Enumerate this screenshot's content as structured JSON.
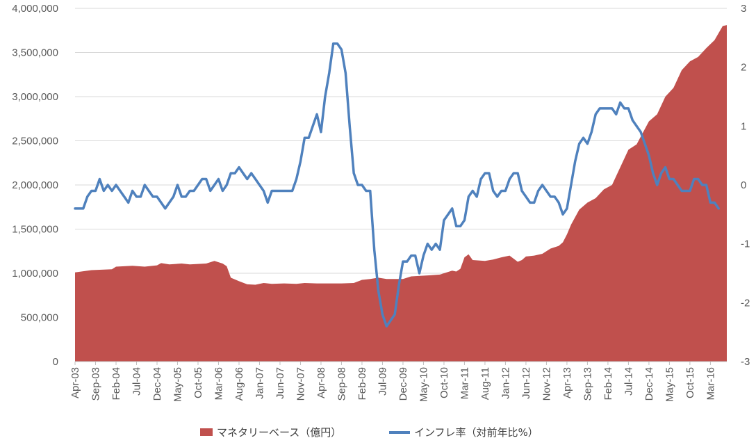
{
  "chart_data": {
    "type": "area+line",
    "title": "",
    "xlabel": "",
    "ylabel_left": "",
    "ylabel_right": "",
    "x_tick_labels": [
      "Apr-03",
      "Sep-03",
      "Feb-04",
      "Jul-04",
      "Dec-04",
      "May-05",
      "Oct-05",
      "Mar-06",
      "Aug-06",
      "Jan-07",
      "Jun-07",
      "Nov-07",
      "Apr-08",
      "Sep-08",
      "Feb-09",
      "Jul-09",
      "Dec-09",
      "May-10",
      "Oct-10",
      "Mar-11",
      "Aug-11",
      "Jan-12",
      "Jun-12",
      "Nov-12",
      "Apr-13",
      "Sep-13",
      "Feb-14",
      "Jul-14",
      "Dec-14",
      "May-15",
      "Oct-15",
      "Mar-16"
    ],
    "x_start": "2003-04",
    "x_end": "2016-07",
    "y_left": {
      "min": 0,
      "max": 4000000,
      "step": 500000,
      "tick_labels": [
        "0",
        "500,000",
        "1,000,000",
        "1,500,000",
        "2,000,000",
        "2,500,000",
        "3,000,000",
        "3,500,000",
        "4,000,000"
      ]
    },
    "y_right": {
      "min": -3,
      "max": 3,
      "step": 1,
      "tick_labels": [
        "-3",
        "-2",
        "-1",
        "0",
        "1",
        "2",
        "3"
      ]
    },
    "gridlines": "horizontal",
    "legend_position": "bottom",
    "series": [
      {
        "name": "マネタリーベース（億円）",
        "type": "area",
        "axis": "left",
        "color": "#c0504d",
        "points": [
          [
            "2003-04",
            1010000
          ],
          [
            "2003-08",
            1035000
          ],
          [
            "2004-01",
            1045000
          ],
          [
            "2004-02",
            1075000
          ],
          [
            "2004-06",
            1085000
          ],
          [
            "2004-09",
            1075000
          ],
          [
            "2004-12",
            1090000
          ],
          [
            "2005-01",
            1115000
          ],
          [
            "2005-03",
            1100000
          ],
          [
            "2005-06",
            1110000
          ],
          [
            "2005-08",
            1100000
          ],
          [
            "2005-10",
            1105000
          ],
          [
            "2005-12",
            1110000
          ],
          [
            "2006-02",
            1140000
          ],
          [
            "2006-04",
            1110000
          ],
          [
            "2006-05",
            1080000
          ],
          [
            "2006-06",
            950000
          ],
          [
            "2006-08",
            910000
          ],
          [
            "2006-10",
            875000
          ],
          [
            "2006-12",
            870000
          ],
          [
            "2007-02",
            890000
          ],
          [
            "2007-04",
            880000
          ],
          [
            "2007-07",
            885000
          ],
          [
            "2007-10",
            880000
          ],
          [
            "2007-12",
            890000
          ],
          [
            "2008-03",
            885000
          ],
          [
            "2008-09",
            885000
          ],
          [
            "2008-12",
            890000
          ],
          [
            "2009-02",
            925000
          ],
          [
            "2009-04",
            935000
          ],
          [
            "2009-06",
            950000
          ],
          [
            "2009-08",
            935000
          ],
          [
            "2009-12",
            935000
          ],
          [
            "2010-02",
            965000
          ],
          [
            "2010-06",
            975000
          ],
          [
            "2010-09",
            985000
          ],
          [
            "2010-12",
            1030000
          ],
          [
            "2011-01",
            1020000
          ],
          [
            "2011-02",
            1050000
          ],
          [
            "2011-03",
            1180000
          ],
          [
            "2011-04",
            1215000
          ],
          [
            "2011-05",
            1150000
          ],
          [
            "2011-08",
            1140000
          ],
          [
            "2011-10",
            1155000
          ],
          [
            "2011-12",
            1180000
          ],
          [
            "2012-02",
            1200000
          ],
          [
            "2012-04",
            1130000
          ],
          [
            "2012-05",
            1150000
          ],
          [
            "2012-06",
            1190000
          ],
          [
            "2012-08",
            1200000
          ],
          [
            "2012-10",
            1220000
          ],
          [
            "2012-12",
            1280000
          ],
          [
            "2013-02",
            1310000
          ],
          [
            "2013-03",
            1350000
          ],
          [
            "2013-04",
            1440000
          ],
          [
            "2013-05",
            1550000
          ],
          [
            "2013-07",
            1720000
          ],
          [
            "2013-09",
            1800000
          ],
          [
            "2013-11",
            1850000
          ],
          [
            "2014-01",
            1950000
          ],
          [
            "2014-03",
            2000000
          ],
          [
            "2014-05",
            2200000
          ],
          [
            "2014-07",
            2400000
          ],
          [
            "2014-09",
            2460000
          ],
          [
            "2014-12",
            2720000
          ],
          [
            "2015-02",
            2800000
          ],
          [
            "2015-04",
            3000000
          ],
          [
            "2015-06",
            3100000
          ],
          [
            "2015-08",
            3300000
          ],
          [
            "2015-10",
            3400000
          ],
          [
            "2015-12",
            3450000
          ],
          [
            "2016-02",
            3550000
          ],
          [
            "2016-04",
            3640000
          ],
          [
            "2016-06",
            3800000
          ],
          [
            "2016-07",
            3810000
          ]
        ]
      },
      {
        "name": "インフレ率（対前年比%）",
        "type": "line",
        "axis": "right",
        "color": "#4f81bd",
        "points": [
          [
            "2003-04",
            -0.4
          ],
          [
            "2003-05",
            -0.4
          ],
          [
            "2003-06",
            -0.4
          ],
          [
            "2003-07",
            -0.2
          ],
          [
            "2003-08",
            -0.1
          ],
          [
            "2003-09",
            -0.1
          ],
          [
            "2003-10",
            0.1
          ],
          [
            "2003-11",
            -0.1
          ],
          [
            "2003-12",
            0.0
          ],
          [
            "2004-01",
            -0.1
          ],
          [
            "2004-02",
            0.0
          ],
          [
            "2004-03",
            -0.1
          ],
          [
            "2004-04",
            -0.2
          ],
          [
            "2004-05",
            -0.3
          ],
          [
            "2004-06",
            -0.1
          ],
          [
            "2004-07",
            -0.2
          ],
          [
            "2004-08",
            -0.2
          ],
          [
            "2004-09",
            0.0
          ],
          [
            "2004-10",
            -0.1
          ],
          [
            "2004-11",
            -0.2
          ],
          [
            "2004-12",
            -0.2
          ],
          [
            "2005-01",
            -0.3
          ],
          [
            "2005-02",
            -0.4
          ],
          [
            "2005-03",
            -0.3
          ],
          [
            "2005-04",
            -0.2
          ],
          [
            "2005-05",
            0.0
          ],
          [
            "2005-06",
            -0.2
          ],
          [
            "2005-07",
            -0.2
          ],
          [
            "2005-08",
            -0.1
          ],
          [
            "2005-09",
            -0.1
          ],
          [
            "2005-10",
            0.0
          ],
          [
            "2005-11",
            0.1
          ],
          [
            "2005-12",
            0.1
          ],
          [
            "2006-01",
            -0.1
          ],
          [
            "2006-02",
            0.0
          ],
          [
            "2006-03",
            0.1
          ],
          [
            "2006-04",
            -0.1
          ],
          [
            "2006-05",
            0.0
          ],
          [
            "2006-06",
            0.2
          ],
          [
            "2006-07",
            0.2
          ],
          [
            "2006-08",
            0.3
          ],
          [
            "2006-09",
            0.2
          ],
          [
            "2006-10",
            0.1
          ],
          [
            "2006-11",
            0.2
          ],
          [
            "2006-12",
            0.1
          ],
          [
            "2007-01",
            0.0
          ],
          [
            "2007-02",
            -0.1
          ],
          [
            "2007-03",
            -0.3
          ],
          [
            "2007-04",
            -0.1
          ],
          [
            "2007-05",
            -0.1
          ],
          [
            "2007-06",
            -0.1
          ],
          [
            "2007-07",
            -0.1
          ],
          [
            "2007-08",
            -0.1
          ],
          [
            "2007-09",
            -0.1
          ],
          [
            "2007-10",
            0.1
          ],
          [
            "2007-11",
            0.4
          ],
          [
            "2007-12",
            0.8
          ],
          [
            "2008-01",
            0.8
          ],
          [
            "2008-02",
            1.0
          ],
          [
            "2008-03",
            1.2
          ],
          [
            "2008-04",
            0.9
          ],
          [
            "2008-05",
            1.5
          ],
          [
            "2008-06",
            1.9
          ],
          [
            "2008-07",
            2.4
          ],
          [
            "2008-08",
            2.4
          ],
          [
            "2008-09",
            2.3
          ],
          [
            "2008-10",
            1.9
          ],
          [
            "2008-11",
            1.0
          ],
          [
            "2008-12",
            0.2
          ],
          [
            "2009-01",
            0.0
          ],
          [
            "2009-02",
            0.0
          ],
          [
            "2009-03",
            -0.1
          ],
          [
            "2009-04",
            -0.1
          ],
          [
            "2009-05",
            -1.1
          ],
          [
            "2009-06",
            -1.8
          ],
          [
            "2009-07",
            -2.2
          ],
          [
            "2009-08",
            -2.4
          ],
          [
            "2009-09",
            -2.3
          ],
          [
            "2009-10",
            -2.2
          ],
          [
            "2009-11",
            -1.7
          ],
          [
            "2009-12",
            -1.3
          ],
          [
            "2010-01",
            -1.3
          ],
          [
            "2010-02",
            -1.2
          ],
          [
            "2010-03",
            -1.2
          ],
          [
            "2010-04",
            -1.5
          ],
          [
            "2010-05",
            -1.2
          ],
          [
            "2010-06",
            -1.0
          ],
          [
            "2010-07",
            -1.1
          ],
          [
            "2010-08",
            -1.0
          ],
          [
            "2010-09",
            -1.1
          ],
          [
            "2010-10",
            -0.6
          ],
          [
            "2010-11",
            -0.5
          ],
          [
            "2010-12",
            -0.4
          ],
          [
            "2011-01",
            -0.7
          ],
          [
            "2011-02",
            -0.7
          ],
          [
            "2011-03",
            -0.6
          ],
          [
            "2011-04",
            -0.2
          ],
          [
            "2011-05",
            -0.1
          ],
          [
            "2011-06",
            -0.2
          ],
          [
            "2011-07",
            0.1
          ],
          [
            "2011-08",
            0.2
          ],
          [
            "2011-09",
            0.2
          ],
          [
            "2011-10",
            -0.1
          ],
          [
            "2011-11",
            -0.2
          ],
          [
            "2011-12",
            -0.1
          ],
          [
            "2012-01",
            -0.1
          ],
          [
            "2012-02",
            0.1
          ],
          [
            "2012-03",
            0.2
          ],
          [
            "2012-04",
            0.2
          ],
          [
            "2012-05",
            -0.1
          ],
          [
            "2012-06",
            -0.2
          ],
          [
            "2012-07",
            -0.3
          ],
          [
            "2012-08",
            -0.3
          ],
          [
            "2012-09",
            -0.1
          ],
          [
            "2012-10",
            0.0
          ],
          [
            "2012-11",
            -0.1
          ],
          [
            "2012-12",
            -0.2
          ],
          [
            "2013-01",
            -0.2
          ],
          [
            "2013-02",
            -0.3
          ],
          [
            "2013-03",
            -0.5
          ],
          [
            "2013-04",
            -0.4
          ],
          [
            "2013-05",
            0.0
          ],
          [
            "2013-06",
            0.4
          ],
          [
            "2013-07",
            0.7
          ],
          [
            "2013-08",
            0.8
          ],
          [
            "2013-09",
            0.7
          ],
          [
            "2013-10",
            0.9
          ],
          [
            "2013-11",
            1.2
          ],
          [
            "2013-12",
            1.3
          ],
          [
            "2014-01",
            1.3
          ],
          [
            "2014-02",
            1.3
          ],
          [
            "2014-03",
            1.3
          ],
          [
            "2014-04",
            1.2
          ],
          [
            "2014-05",
            1.4
          ],
          [
            "2014-06",
            1.3
          ],
          [
            "2014-07",
            1.3
          ],
          [
            "2014-08",
            1.1
          ],
          [
            "2014-09",
            1.0
          ],
          [
            "2014-10",
            0.9
          ],
          [
            "2014-11",
            0.7
          ],
          [
            "2014-12",
            0.5
          ],
          [
            "2015-01",
            0.2
          ],
          [
            "2015-02",
            0.0
          ],
          [
            "2015-03",
            0.2
          ],
          [
            "2015-04",
            0.3
          ],
          [
            "2015-05",
            0.1
          ],
          [
            "2015-06",
            0.1
          ],
          [
            "2015-07",
            0.0
          ],
          [
            "2015-08",
            -0.1
          ],
          [
            "2015-09",
            -0.1
          ],
          [
            "2015-10",
            -0.1
          ],
          [
            "2015-11",
            0.1
          ],
          [
            "2015-12",
            0.1
          ],
          [
            "2016-01",
            0.0
          ],
          [
            "2016-02",
            0.0
          ],
          [
            "2016-03",
            -0.3
          ],
          [
            "2016-04",
            -0.3
          ],
          [
            "2016-05",
            -0.4
          ]
        ]
      }
    ]
  }
}
